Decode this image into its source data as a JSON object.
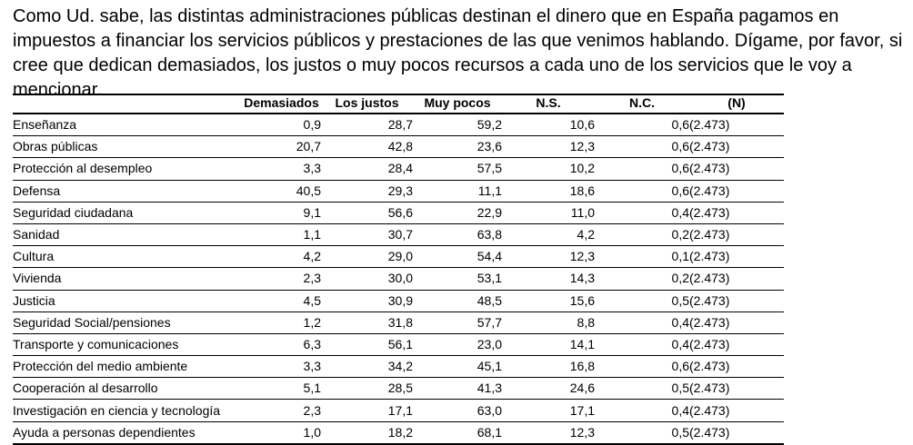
{
  "intro_text": "Como Ud. sabe, las distintas administraciones públicas destinan el dinero que en España pagamos en impuestos a financiar los servicios públicos y prestaciones de las que venimos hablando. Dígame, por favor, si cree que dedican demasiados, los justos o muy pocos recursos a cada uno de los servicios que le voy a mencionar.",
  "table": {
    "headers": [
      "",
      "Demasiados",
      "Los justos",
      "Muy pocos",
      "N.S.",
      "N.C.",
      "(N)"
    ],
    "rows": [
      {
        "label": "Enseñanza",
        "demasiados": "0,9",
        "justos": "28,7",
        "pocos": "59,2",
        "ns": "10,6",
        "nc": "0,6",
        "n": "(2.473)"
      },
      {
        "label": "Obras públicas",
        "demasiados": "20,7",
        "justos": "42,8",
        "pocos": "23,6",
        "ns": "12,3",
        "nc": "0,6",
        "n": "(2.473)"
      },
      {
        "label": "Protección al desempleo",
        "demasiados": "3,3",
        "justos": "28,4",
        "pocos": "57,5",
        "ns": "10,2",
        "nc": "0,6",
        "n": "(2.473)"
      },
      {
        "label": "Defensa",
        "demasiados": "40,5",
        "justos": "29,3",
        "pocos": "11,1",
        "ns": "18,6",
        "nc": "0,6",
        "n": "(2.473)"
      },
      {
        "label": "Seguridad ciudadana",
        "demasiados": "9,1",
        "justos": "56,6",
        "pocos": "22,9",
        "ns": "11,0",
        "nc": "0,4",
        "n": "(2.473)"
      },
      {
        "label": "Sanidad",
        "demasiados": "1,1",
        "justos": "30,7",
        "pocos": "63,8",
        "ns": "4,2",
        "nc": "0,2",
        "n": "(2.473)"
      },
      {
        "label": "Cultura",
        "demasiados": "4,2",
        "justos": "29,0",
        "pocos": "54,4",
        "ns": "12,3",
        "nc": "0,1",
        "n": "(2.473)"
      },
      {
        "label": "Vivienda",
        "demasiados": "2,3",
        "justos": "30,0",
        "pocos": "53,1",
        "ns": "14,3",
        "nc": "0,2",
        "n": "(2.473)"
      },
      {
        "label": "Justicia",
        "demasiados": "4,5",
        "justos": "30,9",
        "pocos": "48,5",
        "ns": "15,6",
        "nc": "0,5",
        "n": "(2.473)"
      },
      {
        "label": "Seguridad Social/pensiones",
        "demasiados": "1,2",
        "justos": "31,8",
        "pocos": "57,7",
        "ns": "8,8",
        "nc": "0,4",
        "n": "(2.473)"
      },
      {
        "label": "Transporte y comunicaciones",
        "demasiados": "6,3",
        "justos": "56,1",
        "pocos": "23,0",
        "ns": "14,1",
        "nc": "0,4",
        "n": "(2.473)"
      },
      {
        "label": "Protección del medio ambiente",
        "demasiados": "3,3",
        "justos": "34,2",
        "pocos": "45,1",
        "ns": "16,8",
        "nc": "0,6",
        "n": "(2.473)"
      },
      {
        "label": "Cooperación al desarrollo",
        "demasiados": "5,1",
        "justos": "28,5",
        "pocos": "41,3",
        "ns": "24,6",
        "nc": "0,5",
        "n": "(2.473)"
      },
      {
        "label": "Investigación en ciencia y tecnología",
        "demasiados": "2,3",
        "justos": "17,1",
        "pocos": "63,0",
        "ns": "17,1",
        "nc": "0,4",
        "n": "(2.473)"
      },
      {
        "label": "Ayuda a personas dependientes",
        "demasiados": "1,0",
        "justos": "18,2",
        "pocos": "68,1",
        "ns": "12,3",
        "nc": "0,5",
        "n": "(2.473)"
      }
    ]
  }
}
